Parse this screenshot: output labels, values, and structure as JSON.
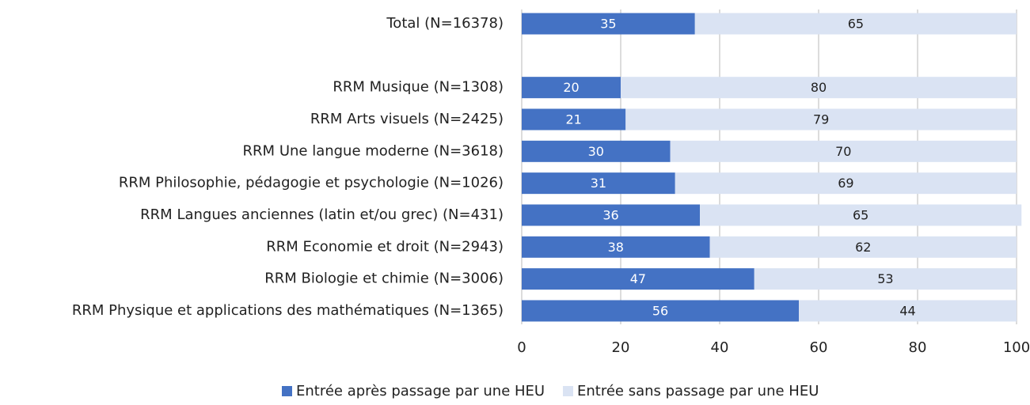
{
  "chart_data": {
    "type": "stacked_barh",
    "categories": [
      "Total (N=16378)",
      null,
      "RRM Musique (N=1308)",
      "RRM Arts visuels (N=2425)",
      "RRM Une langue moderne (N=3618)",
      "RRM Philosophie, pédagogie et psychologie (N=1026)",
      "RRM Langues anciennes (latin et/ou grec) (N=431)",
      "RRM Economie et droit (N=2943)",
      "RRM Biologie et chimie (N=3006)",
      "RRM Physique et applications des mathématiques (N=1365)"
    ],
    "series": [
      {
        "name": "Entrée après passage par une HEU",
        "color": "#4472c4",
        "values": [
          35,
          null,
          20,
          21,
          30,
          31,
          36,
          38,
          47,
          56
        ]
      },
      {
        "name": "Entrée sans passage par une HEU",
        "color": "#dae3f3",
        "values": [
          65,
          null,
          80,
          79,
          70,
          69,
          65,
          62,
          53,
          44
        ]
      }
    ],
    "xlim": [
      0,
      100
    ],
    "xticks": [
      0,
      20,
      40,
      60,
      80,
      100
    ],
    "grid": true,
    "legend": "bottom"
  }
}
